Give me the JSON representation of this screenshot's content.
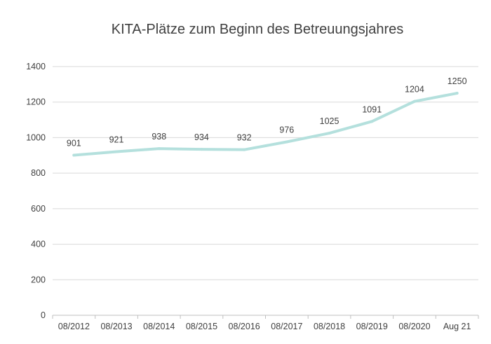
{
  "chart_data": {
    "type": "line",
    "title": "KITA-Plätze zum Beginn des Betreuungsjahres",
    "xlabel": "",
    "ylabel": "",
    "categories": [
      "08/2012",
      "08/2013",
      "08/2014",
      "08/2015",
      "08/2016",
      "08/2017",
      "08/2018",
      "08/2019",
      "08/2020",
      "Aug 21"
    ],
    "series": [
      {
        "values": [
          901,
          921,
          938,
          934,
          932,
          976,
          1025,
          1091,
          1204,
          1250
        ]
      }
    ],
    "ylim": [
      0,
      1400
    ],
    "yticks": [
      0,
      200,
      400,
      600,
      800,
      1000,
      1200,
      1400
    ],
    "grid": true,
    "legend": "none",
    "colors": {
      "series": "#b4e0dd",
      "grid": "#d9d9d9",
      "text": "#404040"
    }
  }
}
